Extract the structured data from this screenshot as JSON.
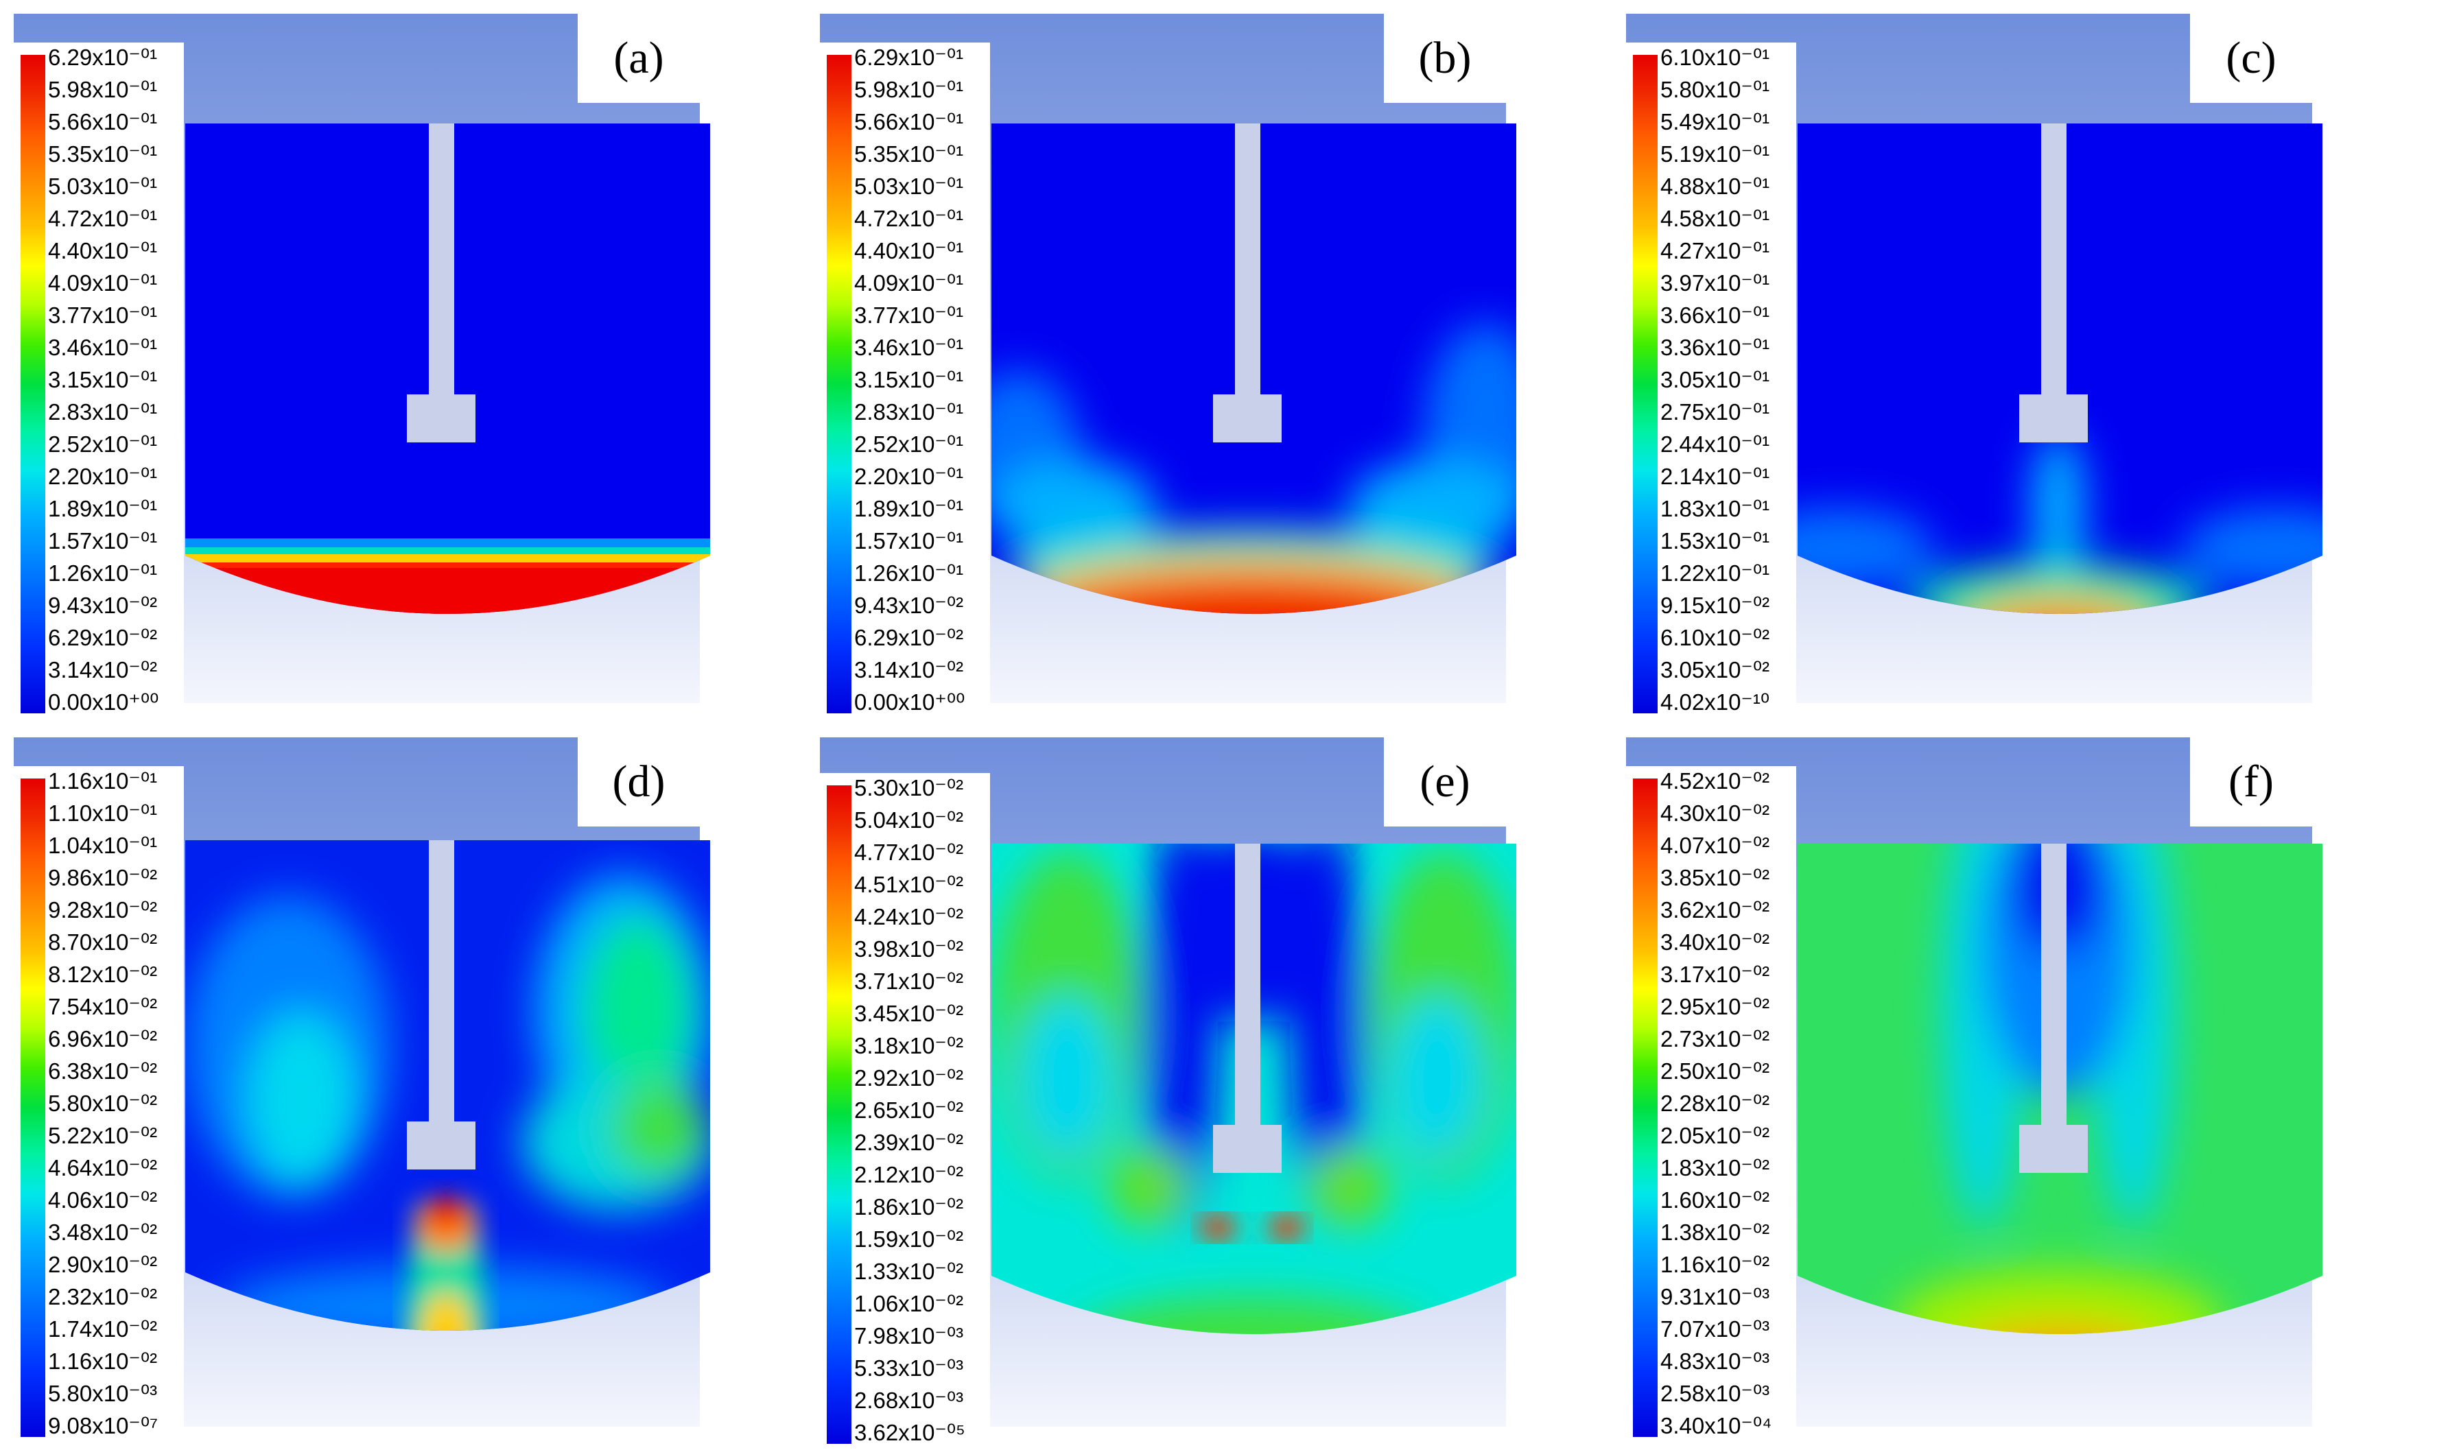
{
  "panels": [
    {
      "id": "a",
      "label": "(a)",
      "legend": [
        "6.29x10⁻⁰¹",
        "5.98x10⁻⁰¹",
        "5.66x10⁻⁰¹",
        "5.35x10⁻⁰¹",
        "5.03x10⁻⁰¹",
        "4.72x10⁻⁰¹",
        "4.40x10⁻⁰¹",
        "4.09x10⁻⁰¹",
        "3.77x10⁻⁰¹",
        "3.46x10⁻⁰¹",
        "3.15x10⁻⁰¹",
        "2.83x10⁻⁰¹",
        "2.52x10⁻⁰¹",
        "2.20x10⁻⁰¹",
        "1.89x10⁻⁰¹",
        "1.57x10⁻⁰¹",
        "1.26x10⁻⁰¹",
        "9.43x10⁻⁰²",
        "6.29x10⁻⁰²",
        "3.14x10⁻⁰²",
        "0.00x10⁺⁰⁰"
      ]
    },
    {
      "id": "b",
      "label": "(b)",
      "legend": [
        "6.29x10⁻⁰¹",
        "5.98x10⁻⁰¹",
        "5.66x10⁻⁰¹",
        "5.35x10⁻⁰¹",
        "5.03x10⁻⁰¹",
        "4.72x10⁻⁰¹",
        "4.40x10⁻⁰¹",
        "4.09x10⁻⁰¹",
        "3.77x10⁻⁰¹",
        "3.46x10⁻⁰¹",
        "3.15x10⁻⁰¹",
        "2.83x10⁻⁰¹",
        "2.52x10⁻⁰¹",
        "2.20x10⁻⁰¹",
        "1.89x10⁻⁰¹",
        "1.57x10⁻⁰¹",
        "1.26x10⁻⁰¹",
        "9.43x10⁻⁰²",
        "6.29x10⁻⁰²",
        "3.14x10⁻⁰²",
        "0.00x10⁺⁰⁰"
      ]
    },
    {
      "id": "c",
      "label": "(c)",
      "legend": [
        "6.10x10⁻⁰¹",
        "5.80x10⁻⁰¹",
        "5.49x10⁻⁰¹",
        "5.19x10⁻⁰¹",
        "4.88x10⁻⁰¹",
        "4.58x10⁻⁰¹",
        "4.27x10⁻⁰¹",
        "3.97x10⁻⁰¹",
        "3.66x10⁻⁰¹",
        "3.36x10⁻⁰¹",
        "3.05x10⁻⁰¹",
        "2.75x10⁻⁰¹",
        "2.44x10⁻⁰¹",
        "2.14x10⁻⁰¹",
        "1.83x10⁻⁰¹",
        "1.53x10⁻⁰¹",
        "1.22x10⁻⁰¹",
        "9.15x10⁻⁰²",
        "6.10x10⁻⁰²",
        "3.05x10⁻⁰²",
        "4.02x10⁻¹⁰"
      ]
    },
    {
      "id": "d",
      "label": "(d)",
      "legend": [
        "1.16x10⁻⁰¹",
        "1.10x10⁻⁰¹",
        "1.04x10⁻⁰¹",
        "9.86x10⁻⁰²",
        "9.28x10⁻⁰²",
        "8.70x10⁻⁰²",
        "8.12x10⁻⁰²",
        "7.54x10⁻⁰²",
        "6.96x10⁻⁰²",
        "6.38x10⁻⁰²",
        "5.80x10⁻⁰²",
        "5.22x10⁻⁰²",
        "4.64x10⁻⁰²",
        "4.06x10⁻⁰²",
        "3.48x10⁻⁰²",
        "2.90x10⁻⁰²",
        "2.32x10⁻⁰²",
        "1.74x10⁻⁰²",
        "1.16x10⁻⁰²",
        "5.80x10⁻⁰³",
        "9.08x10⁻⁰⁷"
      ]
    },
    {
      "id": "e",
      "label": "(e)",
      "legend": [
        "5.30x10⁻⁰²",
        "5.04x10⁻⁰²",
        "4.77x10⁻⁰²",
        "4.51x10⁻⁰²",
        "4.24x10⁻⁰²",
        "3.98x10⁻⁰²",
        "3.71x10⁻⁰²",
        "3.45x10⁻⁰²",
        "3.18x10⁻⁰²",
        "2.92x10⁻⁰²",
        "2.65x10⁻⁰²",
        "2.39x10⁻⁰²",
        "2.12x10⁻⁰²",
        "1.86x10⁻⁰²",
        "1.59x10⁻⁰²",
        "1.33x10⁻⁰²",
        "1.06x10⁻⁰²",
        "7.98x10⁻⁰³",
        "5.33x10⁻⁰³",
        "2.68x10⁻⁰³",
        "3.62x10⁻⁰⁵"
      ]
    },
    {
      "id": "f",
      "label": "(f)",
      "legend": [
        "4.52x10⁻⁰²",
        "4.30x10⁻⁰²",
        "4.07x10⁻⁰²",
        "3.85x10⁻⁰²",
        "3.62x10⁻⁰²",
        "3.40x10⁻⁰²",
        "3.17x10⁻⁰²",
        "2.95x10⁻⁰²",
        "2.73x10⁻⁰²",
        "2.50x10⁻⁰²",
        "2.28x10⁻⁰²",
        "2.05x10⁻⁰²",
        "1.83x10⁻⁰²",
        "1.60x10⁻⁰²",
        "1.38x10⁻⁰²",
        "1.16x10⁻⁰²",
        "9.31x10⁻⁰³",
        "7.07x10⁻⁰³",
        "4.83x10⁻⁰³",
        "2.58x10⁻⁰³",
        "3.40x10⁻⁰⁴"
      ]
    }
  ]
}
